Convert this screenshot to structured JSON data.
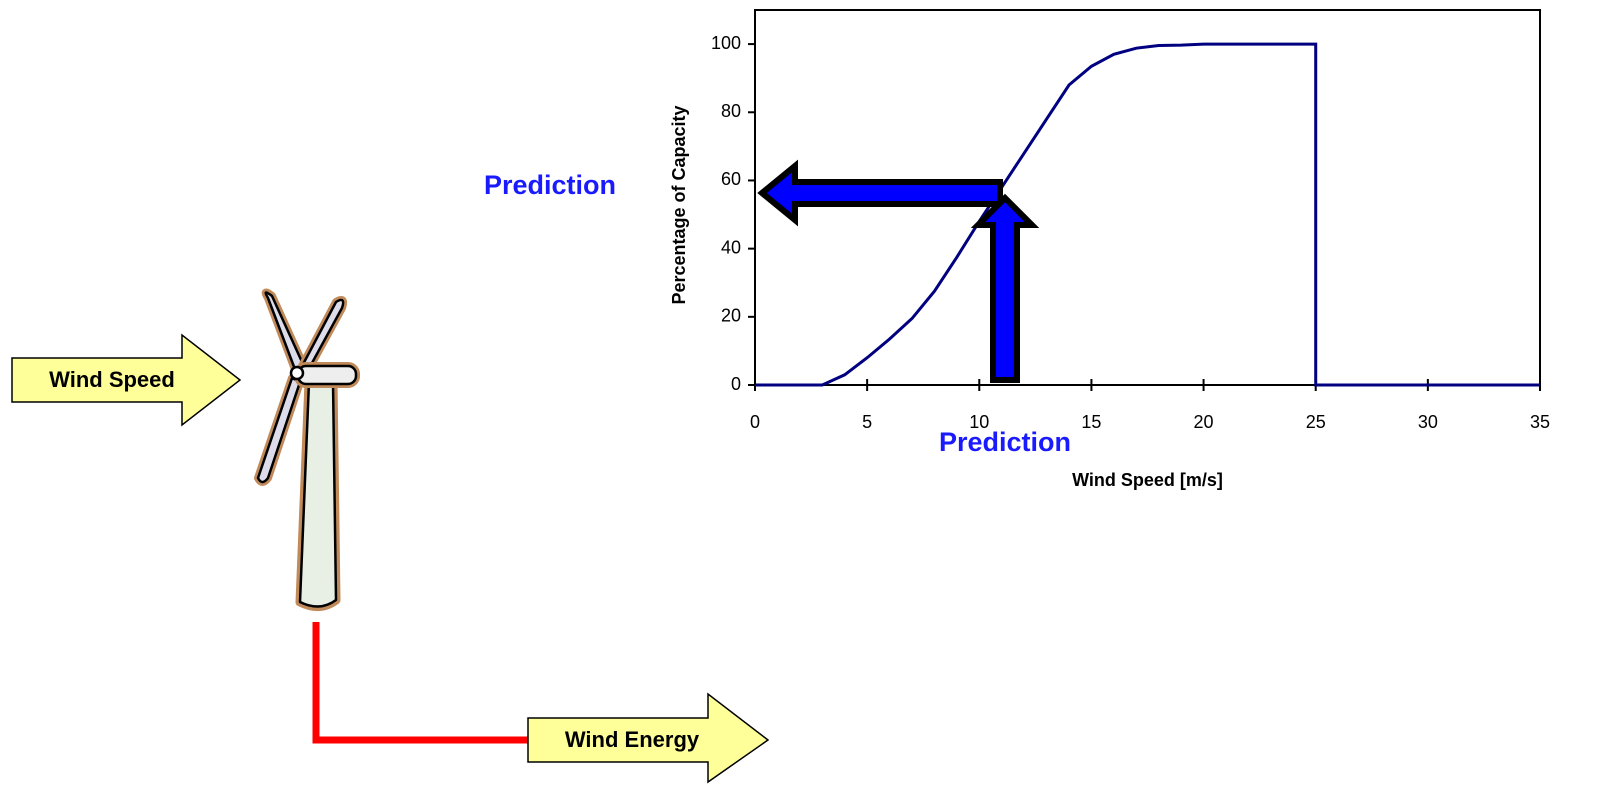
{
  "chart_data": {
    "type": "line",
    "x_label": "Wind Speed [m/s]",
    "y_label": "Percentage of Capacity",
    "x": [
      0,
      3,
      4,
      5,
      6,
      7,
      8,
      9,
      10,
      11,
      12,
      13,
      14,
      15,
      16,
      17,
      18,
      19,
      20,
      25,
      25,
      35
    ],
    "values": [
      0,
      0,
      3,
      8,
      13.5,
      19.5,
      27.5,
      37.5,
      48,
      58,
      68,
      78,
      88,
      93.5,
      97,
      98.8,
      99.6,
      99.7,
      100,
      100,
      0,
      0
    ],
    "color": "#000080",
    "xlim": [
      0,
      35
    ],
    "xticks": [
      0,
      5,
      10,
      15,
      20,
      25,
      30,
      35
    ],
    "ylim": [
      0,
      110
    ],
    "yticks": [
      0,
      20,
      40,
      60,
      80,
      100
    ]
  },
  "diagram": {
    "input_label": "Wind Speed",
    "output_label": "Wind Energy",
    "prediction_labels": [
      "Prediction",
      "Prediction"
    ]
  }
}
